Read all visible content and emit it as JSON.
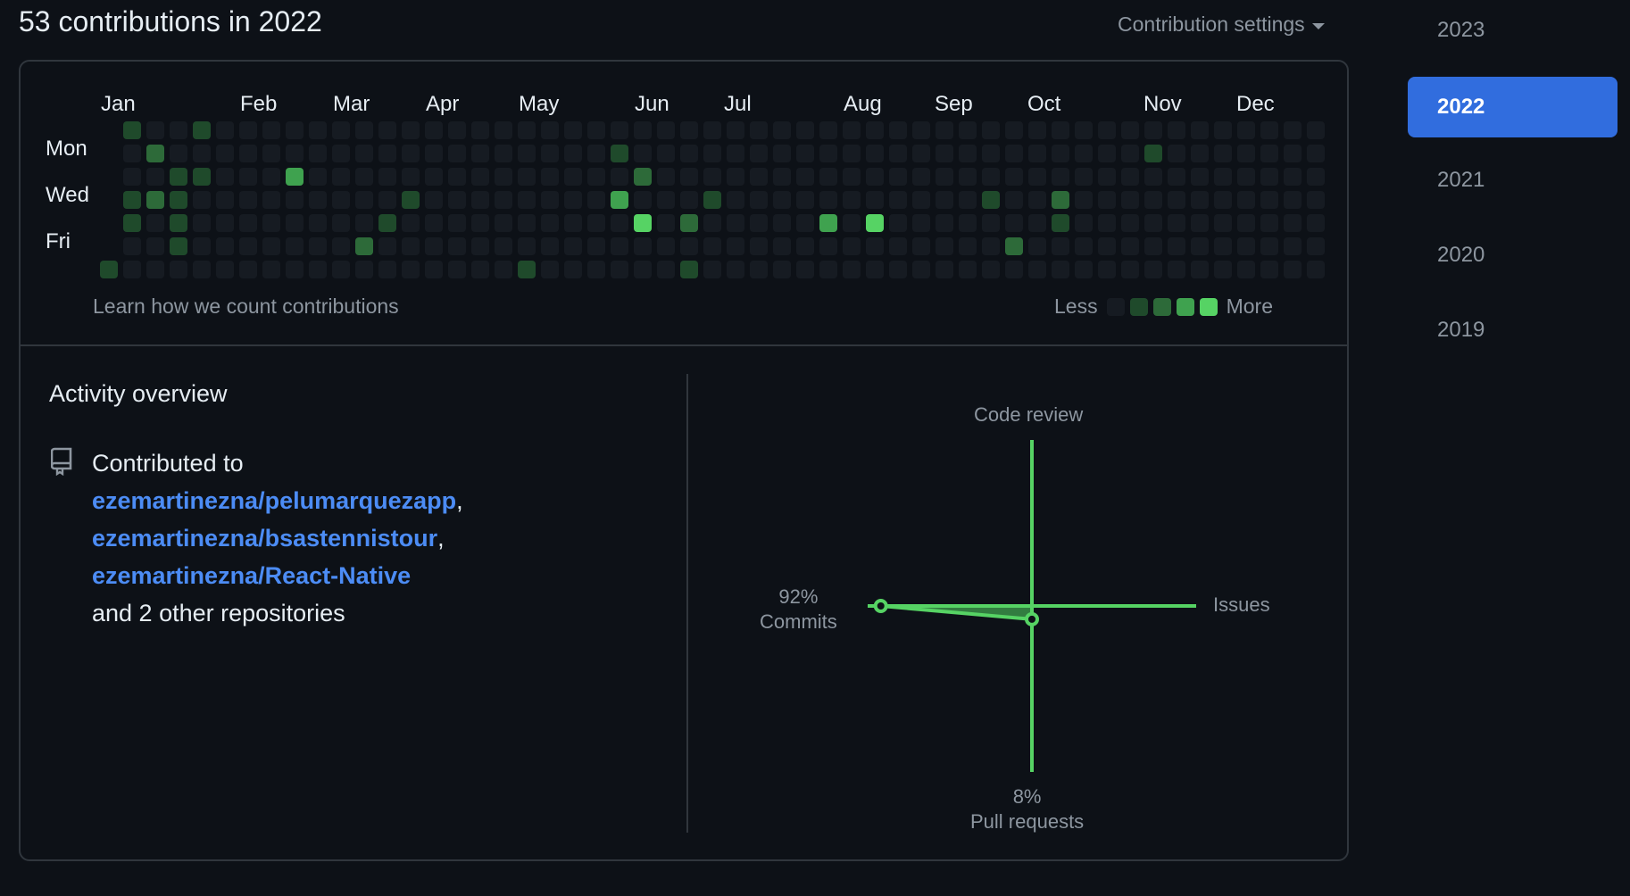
{
  "header": {
    "title": "53 contributions in 2022",
    "settings_label": "Contribution settings"
  },
  "graph": {
    "months": [
      "Jan",
      "Feb",
      "Mar",
      "Apr",
      "May",
      "Jun",
      "Jul",
      "Aug",
      "Sep",
      "Oct",
      "Nov",
      "Dec"
    ],
    "day_labels": [
      "Mon",
      "Wed",
      "Fri"
    ],
    "weeks": 53,
    "first_weekday_offset": 6,
    "contributions": [
      {
        "week": 0,
        "day": 6,
        "level": 1
      },
      {
        "week": 1,
        "day": 0,
        "level": 1
      },
      {
        "week": 1,
        "day": 3,
        "level": 1
      },
      {
        "week": 1,
        "day": 4,
        "level": 1
      },
      {
        "week": 2,
        "day": 1,
        "level": 2
      },
      {
        "week": 2,
        "day": 3,
        "level": 2
      },
      {
        "week": 3,
        "day": 2,
        "level": 1
      },
      {
        "week": 3,
        "day": 3,
        "level": 1
      },
      {
        "week": 3,
        "day": 4,
        "level": 1
      },
      {
        "week": 3,
        "day": 5,
        "level": 1
      },
      {
        "week": 4,
        "day": 0,
        "level": 1
      },
      {
        "week": 4,
        "day": 2,
        "level": 1
      },
      {
        "week": 8,
        "day": 2,
        "level": 3
      },
      {
        "week": 11,
        "day": 5,
        "level": 2
      },
      {
        "week": 12,
        "day": 4,
        "level": 1
      },
      {
        "week": 13,
        "day": 3,
        "level": 1
      },
      {
        "week": 18,
        "day": 6,
        "level": 1
      },
      {
        "week": 22,
        "day": 1,
        "level": 1
      },
      {
        "week": 22,
        "day": 3,
        "level": 3
      },
      {
        "week": 23,
        "day": 2,
        "level": 2
      },
      {
        "week": 23,
        "day": 4,
        "level": 4
      },
      {
        "week": 25,
        "day": 4,
        "level": 2
      },
      {
        "week": 25,
        "day": 6,
        "level": 1
      },
      {
        "week": 26,
        "day": 3,
        "level": 1
      },
      {
        "week": 31,
        "day": 4,
        "level": 3
      },
      {
        "week": 33,
        "day": 4,
        "level": 4
      },
      {
        "week": 38,
        "day": 3,
        "level": 1
      },
      {
        "week": 39,
        "day": 5,
        "level": 2
      },
      {
        "week": 41,
        "day": 3,
        "level": 2
      },
      {
        "week": 41,
        "day": 4,
        "level": 1
      },
      {
        "week": 45,
        "day": 1,
        "level": 1
      }
    ],
    "learn_link": "Learn how we count contributions",
    "legend_less": "Less",
    "legend_more": "More"
  },
  "activity": {
    "title": "Activity overview",
    "contributed_to": "Contributed to",
    "repos": [
      "ezemartinezna/pelumarquezapp",
      "ezemartinezna/bsastennistour",
      "ezemartinezna/React-Native"
    ],
    "repo_separator": ",",
    "other_repos": "and 2 other repositories"
  },
  "radar": {
    "code_review": "Code review",
    "issues": "Issues",
    "commits_pct": "92%",
    "commits": "Commits",
    "pull_requests_pct": "8%",
    "pull_requests": "Pull requests",
    "values": {
      "commits": 92,
      "pull_requests": 8,
      "issues": 0,
      "code_review": 0
    },
    "accent": "#56d364"
  },
  "years": {
    "items": [
      "2023",
      "2022",
      "2021",
      "2020",
      "2019"
    ],
    "selected": "2022"
  },
  "colors": {
    "background": "#0d1117",
    "border": "#30363d",
    "link": "#4c8cf5",
    "selected_year": "#316dde"
  }
}
